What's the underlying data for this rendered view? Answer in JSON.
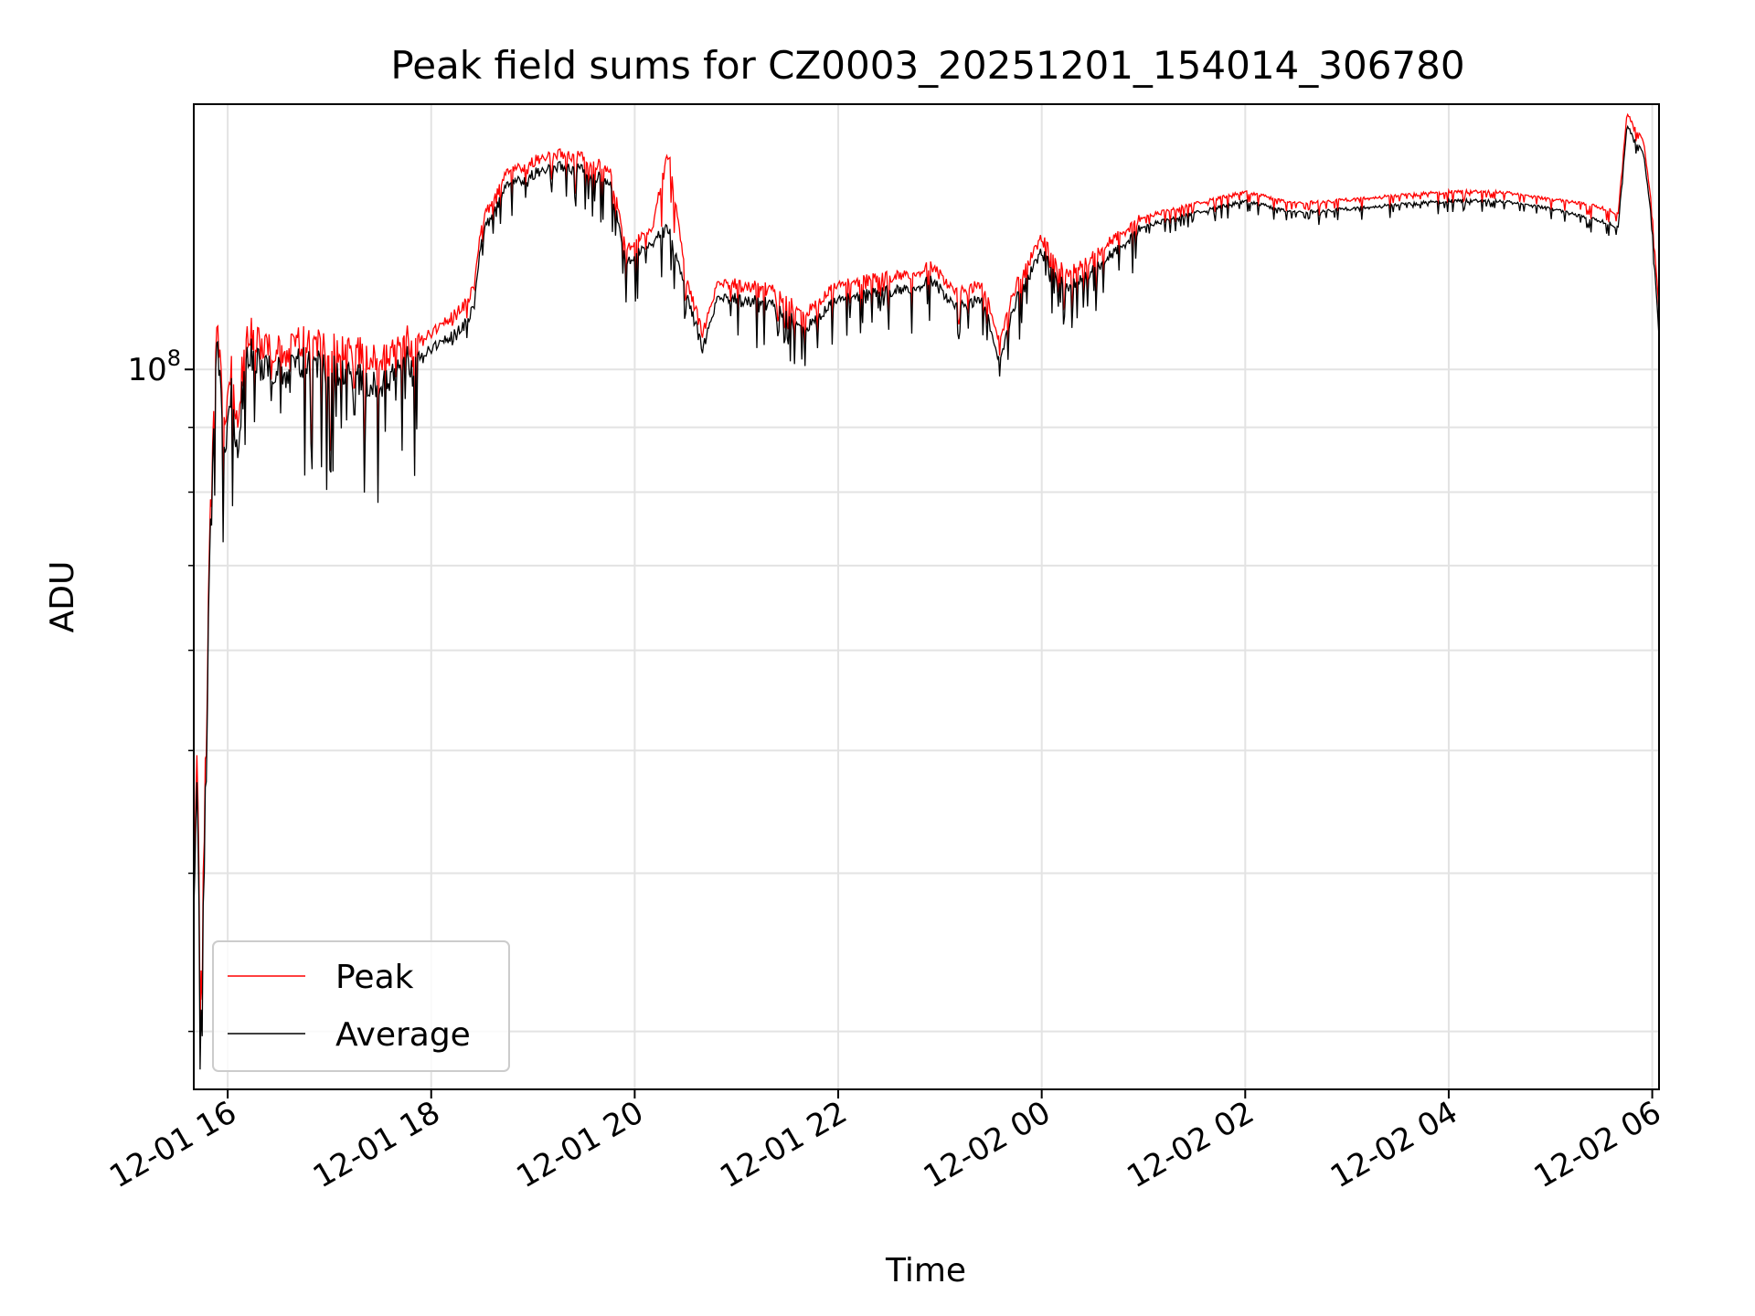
{
  "chart_data": {
    "type": "line",
    "title": "Peak field sums for CZ0003_20251201_154014_306780",
    "xlabel": "Time",
    "ylabel": "ADU",
    "y_scale": "log",
    "grid": true,
    "legend_position": "lower-left",
    "x_ticks": [
      "12-01 16",
      "12-01 18",
      "12-01 20",
      "12-01 22",
      "12-02 00",
      "12-02 02",
      "12-02 04",
      "12-02 06"
    ],
    "y_tick_major": {
      "value": 100000000,
      "base": "10",
      "exp": "8"
    },
    "y_minor_ticks": [
      30000000,
      40000000,
      50000000,
      60000000,
      70000000,
      80000000,
      90000000
    ],
    "xlim": [
      "2025-12-01 15:40",
      "2025-12-02 06:04"
    ],
    "ylim": [
      27000000,
      162000000
    ],
    "series": [
      {
        "name": "Peak",
        "color": "#ff0000",
        "points": [
          [
            "2025-12-01 15:40",
            38000000
          ],
          [
            "2025-12-01 15:42",
            50000000
          ],
          [
            "2025-12-01 15:44",
            32000000
          ],
          [
            "2025-12-01 15:46",
            42000000
          ],
          [
            "2025-12-01 15:48",
            60000000
          ],
          [
            "2025-12-01 15:50",
            80000000
          ],
          [
            "2025-12-01 15:54",
            112000000
          ],
          [
            "2025-12-01 15:58",
            90000000
          ],
          [
            "2025-12-01 16:02",
            101000000
          ],
          [
            "2025-12-01 16:06",
            88000000
          ],
          [
            "2025-12-01 16:10",
            108000000
          ],
          [
            "2025-12-01 16:20",
            104000000
          ],
          [
            "2025-12-01 16:30",
            103000000
          ],
          [
            "2025-12-01 16:45",
            105000000
          ],
          [
            "2025-12-01 17:00",
            104000000
          ],
          [
            "2025-12-01 17:15",
            103000000
          ],
          [
            "2025-12-01 17:30",
            102000000
          ],
          [
            "2025-12-01 17:45",
            105000000
          ],
          [
            "2025-12-01 18:00",
            106000000
          ],
          [
            "2025-12-01 18:15",
            110000000
          ],
          [
            "2025-12-01 18:25",
            115000000
          ],
          [
            "2025-12-01 18:30",
            130000000
          ],
          [
            "2025-12-01 18:45",
            142000000
          ],
          [
            "2025-12-01 19:00",
            145000000
          ],
          [
            "2025-12-01 19:15",
            147000000
          ],
          [
            "2025-12-01 19:30",
            146000000
          ],
          [
            "2025-12-01 19:45",
            143000000
          ],
          [
            "2025-12-01 19:55",
            124000000
          ],
          [
            "2025-12-01 20:10",
            128000000
          ],
          [
            "2025-12-01 20:20",
            148000000
          ],
          [
            "2025-12-01 20:30",
            118000000
          ],
          [
            "2025-12-01 20:40",
            106000000
          ],
          [
            "2025-12-01 20:50",
            117000000
          ],
          [
            "2025-12-01 21:00",
            116000000
          ],
          [
            "2025-12-01 21:20",
            115000000
          ],
          [
            "2025-12-01 21:40",
            110000000
          ],
          [
            "2025-12-01 22:00",
            116000000
          ],
          [
            "2025-12-01 22:20",
            117000000
          ],
          [
            "2025-12-01 22:40",
            118000000
          ],
          [
            "2025-12-01 22:55",
            120000000
          ],
          [
            "2025-12-01 23:10",
            114000000
          ],
          [
            "2025-12-01 23:25",
            116000000
          ],
          [
            "2025-12-01 23:35",
            105000000
          ],
          [
            "2025-12-01 23:45",
            116000000
          ],
          [
            "2025-12-02 00:00",
            126000000
          ],
          [
            "2025-12-02 00:15",
            118000000
          ],
          [
            "2025-12-02 00:30",
            122000000
          ],
          [
            "2025-12-02 00:45",
            127000000
          ],
          [
            "2025-12-02 01:00",
            131000000
          ],
          [
            "2025-12-02 01:30",
            134000000
          ],
          [
            "2025-12-02 02:00",
            137000000
          ],
          [
            "2025-12-02 02:30",
            134000000
          ],
          [
            "2025-12-02 03:00",
            135000000
          ],
          [
            "2025-12-02 03:30",
            136000000
          ],
          [
            "2025-12-02 04:00",
            137000000
          ],
          [
            "2025-12-02 04:30",
            137000000
          ],
          [
            "2025-12-02 05:00",
            135000000
          ],
          [
            "2025-12-02 05:20",
            134000000
          ],
          [
            "2025-12-02 05:40",
            132000000
          ],
          [
            "2025-12-02 05:45",
            158000000
          ],
          [
            "2025-12-02 05:55",
            150000000
          ],
          [
            "2025-12-02 06:00",
            132000000
          ],
          [
            "2025-12-02 06:04",
            110000000
          ]
        ]
      },
      {
        "name": "Average",
        "color": "#000000",
        "points": [
          [
            "2025-12-01 15:40",
            37000000
          ],
          [
            "2025-12-01 15:42",
            48000000
          ],
          [
            "2025-12-01 15:44",
            30000000
          ],
          [
            "2025-12-01 15:46",
            40000000
          ],
          [
            "2025-12-01 15:48",
            58000000
          ],
          [
            "2025-12-01 15:50",
            78000000
          ],
          [
            "2025-12-01 15:54",
            110000000
          ],
          [
            "2025-12-01 15:58",
            86000000
          ],
          [
            "2025-12-01 16:02",
            98000000
          ],
          [
            "2025-12-01 16:06",
            84000000
          ],
          [
            "2025-12-01 16:10",
            105000000
          ],
          [
            "2025-12-01 16:20",
            101000000
          ],
          [
            "2025-12-01 16:30",
            100000000
          ],
          [
            "2025-12-01 16:45",
            102000000
          ],
          [
            "2025-12-01 17:00",
            101000000
          ],
          [
            "2025-12-01 17:15",
            99000000
          ],
          [
            "2025-12-01 17:30",
            98000000
          ],
          [
            "2025-12-01 17:45",
            102000000
          ],
          [
            "2025-12-01 18:00",
            104000000
          ],
          [
            "2025-12-01 18:15",
            107000000
          ],
          [
            "2025-12-01 18:25",
            112000000
          ],
          [
            "2025-12-01 18:30",
            128000000
          ],
          [
            "2025-12-01 18:45",
            140000000
          ],
          [
            "2025-12-01 19:00",
            143000000
          ],
          [
            "2025-12-01 19:15",
            145000000
          ],
          [
            "2025-12-01 19:30",
            144000000
          ],
          [
            "2025-12-01 19:45",
            141000000
          ],
          [
            "2025-12-01 19:55",
            122000000
          ],
          [
            "2025-12-01 20:10",
            126000000
          ],
          [
            "2025-12-01 20:20",
            130000000
          ],
          [
            "2025-12-01 20:30",
            116000000
          ],
          [
            "2025-12-01 20:40",
            104000000
          ],
          [
            "2025-12-01 20:50",
            115000000
          ],
          [
            "2025-12-01 21:00",
            114000000
          ],
          [
            "2025-12-01 21:20",
            113000000
          ],
          [
            "2025-12-01 21:40",
            108000000
          ],
          [
            "2025-12-01 22:00",
            114000000
          ],
          [
            "2025-12-01 22:20",
            115000000
          ],
          [
            "2025-12-01 22:40",
            116000000
          ],
          [
            "2025-12-01 22:55",
            118000000
          ],
          [
            "2025-12-01 23:10",
            112000000
          ],
          [
            "2025-12-01 23:25",
            114000000
          ],
          [
            "2025-12-01 23:35",
            102000000
          ],
          [
            "2025-12-01 23:45",
            114000000
          ],
          [
            "2025-12-02 00:00",
            124000000
          ],
          [
            "2025-12-02 00:15",
            116000000
          ],
          [
            "2025-12-02 00:30",
            120000000
          ],
          [
            "2025-12-02 00:45",
            125000000
          ],
          [
            "2025-12-02 01:00",
            130000000
          ],
          [
            "2025-12-02 01:30",
            133000000
          ],
          [
            "2025-12-02 02:00",
            136000000
          ],
          [
            "2025-12-02 02:30",
            133000000
          ],
          [
            "2025-12-02 03:00",
            134000000
          ],
          [
            "2025-12-02 03:30",
            135000000
          ],
          [
            "2025-12-02 04:00",
            136000000
          ],
          [
            "2025-12-02 04:30",
            136000000
          ],
          [
            "2025-12-02 05:00",
            134000000
          ],
          [
            "2025-12-02 05:20",
            132000000
          ],
          [
            "2025-12-02 05:40",
            130000000
          ],
          [
            "2025-12-02 05:45",
            156000000
          ],
          [
            "2025-12-02 05:55",
            148000000
          ],
          [
            "2025-12-02 06:00",
            130000000
          ],
          [
            "2025-12-02 06:04",
            106000000
          ]
        ]
      }
    ]
  }
}
